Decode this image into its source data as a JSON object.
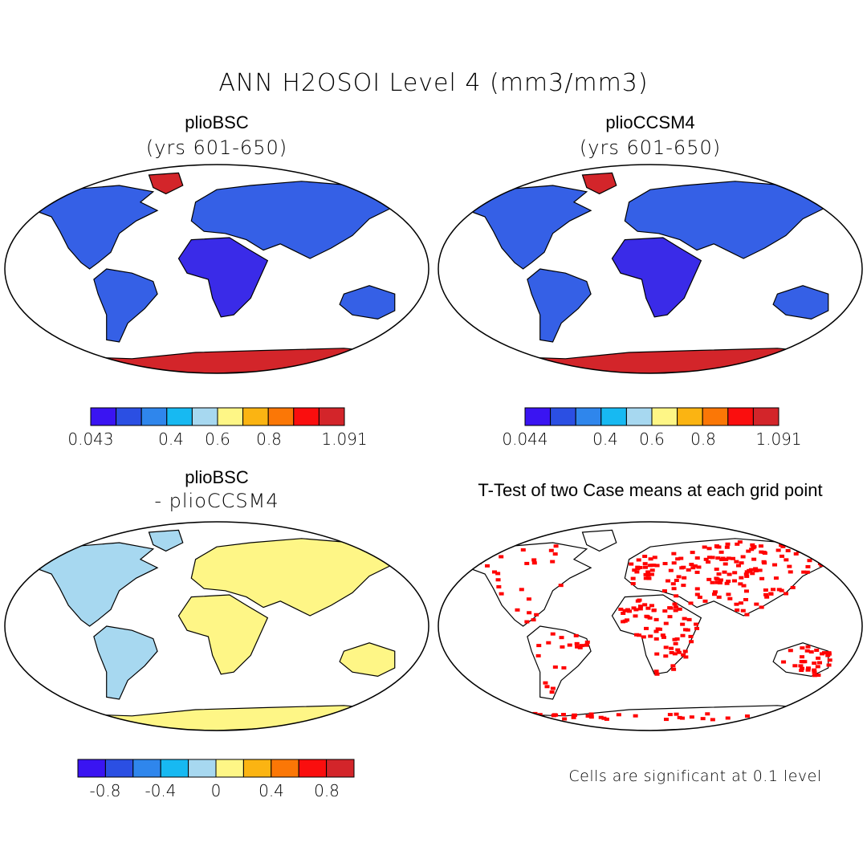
{
  "title": "ANN H2OSOI Level 4 (mm3/mm3)",
  "panels": [
    {
      "id": "a",
      "case": "plioBSC",
      "subtitle": "(yrs 601-650)",
      "colorbar": {
        "labels": [
          "0.043",
          "0.4",
          "0.6",
          "0.8",
          "1.091"
        ]
      }
    },
    {
      "id": "b",
      "case": "plioCCSM4",
      "subtitle": "(yrs 601-650)",
      "colorbar": {
        "labels": [
          "0.044",
          "0.4",
          "0.6",
          "0.8",
          "1.091"
        ]
      }
    },
    {
      "id": "c",
      "case": "plioBSC",
      "subtitle": "- plioCCSM4",
      "colorbar": {
        "labels": [
          "-0.8",
          "-0.4",
          "0",
          "0.4",
          "0.8"
        ]
      }
    },
    {
      "id": "d",
      "case": "T-Test of two Case means at each grid point",
      "subtitle": "",
      "note": "Cells are significant at 0.1 level"
    }
  ],
  "colors": {
    "seq_scale": [
      "#3a14f2",
      "#2b4fe3",
      "#2f86ec",
      "#17b9f2",
      "#a7d8f0",
      "#fef686",
      "#fbb412",
      "#fb7706",
      "#fa0e0e",
      "#d3252a"
    ],
    "diff_scale": [
      "#3a14f2",
      "#2b4fe3",
      "#2f86ec",
      "#17b9f2",
      "#a7d8f0",
      "#fef686",
      "#fbb412",
      "#fb7706",
      "#fa0e0e",
      "#d3252a"
    ],
    "land_wet_mean": "#3560e6",
    "land_dry": "#3a2be8",
    "icecap": "#d3252a",
    "diff_pos": "#fef686",
    "diff_neg": "#a7d8f0",
    "significant": "#ff0000"
  }
}
